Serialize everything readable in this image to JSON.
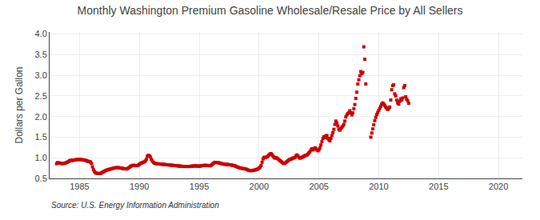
{
  "chart_data": {
    "type": "scatter",
    "title": "Monthly Washington Premium Gasoline Wholesale/Resale Price by All Sellers",
    "y_label": "Dollars per Gallon",
    "annotations": [
      "Source: U.S. Energy Information Administration"
    ],
    "color": "#CC0000",
    "marker": "square",
    "grid": true,
    "xlim": [
      1982.5,
      2022.0
    ],
    "ylim": [
      0.5,
      4.05
    ],
    "xticks": [
      1985,
      1990,
      1995,
      2000,
      2005,
      2010,
      2015,
      2020
    ],
    "yticks": [
      0.5,
      {
        "value": 1.0,
        "label": "1.0"
      },
      1.5,
      {
        "value": 2.0,
        "label": "2.0"
      },
      2.5,
      {
        "value": 3.0,
        "label": "3.0"
      },
      3.5,
      {
        "value": 4.0,
        "label": "4.0"
      }
    ],
    "x": [
      1983.083,
      1983.167,
      1983.25,
      1983.333,
      1983.417,
      1983.5,
      1983.583,
      1983.667,
      1983.75,
      1983.833,
      1983.917,
      1984.0,
      1984.083,
      1984.167,
      1984.25,
      1984.333,
      1984.417,
      1984.5,
      1984.583,
      1984.667,
      1984.75,
      1984.833,
      1984.917,
      1985.0,
      1985.083,
      1985.167,
      1985.25,
      1985.333,
      1985.417,
      1985.5,
      1985.583,
      1985.667,
      1985.75,
      1985.833,
      1985.917,
      1986.0,
      1986.083,
      1986.167,
      1986.25,
      1986.333,
      1986.417,
      1986.5,
      1986.583,
      1986.667,
      1986.75,
      1986.833,
      1986.917,
      1987.0,
      1987.083,
      1987.167,
      1987.25,
      1987.333,
      1987.417,
      1987.5,
      1987.583,
      1987.667,
      1987.75,
      1987.833,
      1987.917,
      1988.0,
      1988.083,
      1988.167,
      1988.25,
      1988.333,
      1988.417,
      1988.5,
      1988.583,
      1988.667,
      1988.75,
      1988.833,
      1988.917,
      1989.0,
      1989.083,
      1989.167,
      1989.25,
      1989.333,
      1989.417,
      1989.5,
      1989.583,
      1989.667,
      1989.75,
      1989.833,
      1989.917,
      1990.0,
      1990.083,
      1990.167,
      1990.25,
      1990.333,
      1990.417,
      1990.5,
      1990.583,
      1990.667,
      1990.75,
      1990.833,
      1990.917,
      1991.0,
      1991.083,
      1991.167,
      1991.25,
      1991.333,
      1991.417,
      1991.5,
      1991.583,
      1991.667,
      1991.75,
      1991.833,
      1991.917,
      1992.0,
      1992.083,
      1992.167,
      1992.25,
      1992.333,
      1992.417,
      1992.5,
      1992.583,
      1992.667,
      1992.75,
      1992.833,
      1992.917,
      1993.0,
      1993.083,
      1993.167,
      1993.25,
      1993.333,
      1993.417,
      1993.5,
      1993.583,
      1993.667,
      1993.75,
      1993.833,
      1993.917,
      1994.0,
      1994.083,
      1994.167,
      1994.25,
      1994.333,
      1994.417,
      1994.5,
      1994.583,
      1994.667,
      1994.75,
      1994.833,
      1994.917,
      1995.0,
      1995.083,
      1995.167,
      1995.25,
      1995.333,
      1995.417,
      1995.5,
      1995.583,
      1995.667,
      1995.75,
      1995.833,
      1995.917,
      1996.0,
      1996.083,
      1996.167,
      1996.25,
      1996.333,
      1996.417,
      1996.5,
      1996.583,
      1996.667,
      1996.75,
      1996.833,
      1996.917,
      1997.0,
      1997.083,
      1997.167,
      1997.25,
      1997.333,
      1997.417,
      1997.5,
      1997.583,
      1997.667,
      1997.75,
      1997.833,
      1997.917,
      1998.0,
      1998.083,
      1998.167,
      1998.25,
      1998.333,
      1998.417,
      1998.5,
      1998.583,
      1998.667,
      1998.75,
      1998.833,
      1998.917,
      1999.0,
      1999.083,
      1999.167,
      1999.25,
      1999.333,
      1999.417,
      1999.5,
      1999.583,
      1999.667,
      1999.75,
      1999.833,
      1999.917,
      2000.0,
      2000.083,
      2000.167,
      2000.25,
      2000.333,
      2000.417,
      2000.5,
      2000.583,
      2000.667,
      2000.75,
      2000.833,
      2000.917,
      2001.0,
      2001.083,
      2001.167,
      2001.25,
      2001.333,
      2001.417,
      2001.5,
      2001.583,
      2001.667,
      2001.75,
      2001.833,
      2001.917,
      2002.0,
      2002.083,
      2002.167,
      2002.25,
      2002.333,
      2002.417,
      2002.5,
      2002.583,
      2002.667,
      2002.75,
      2002.833,
      2002.917,
      2003.0,
      2003.083,
      2003.167,
      2003.25,
      2003.333,
      2003.417,
      2003.5,
      2003.583,
      2003.667,
      2003.75,
      2003.833,
      2003.917,
      2004.0,
      2004.083,
      2004.167,
      2004.25,
      2004.333,
      2004.417,
      2004.5,
      2004.583,
      2004.667,
      2004.75,
      2004.833,
      2004.917,
      2005.0,
      2005.083,
      2005.167,
      2005.25,
      2005.333,
      2005.417,
      2005.5,
      2005.583,
      2005.667,
      2005.75,
      2005.833,
      2005.917,
      2006.0,
      2006.083,
      2006.167,
      2006.25,
      2006.333,
      2006.417,
      2006.5,
      2006.583,
      2006.667,
      2006.75,
      2006.833,
      2006.917,
      2007.0,
      2007.083,
      2007.167,
      2007.25,
      2007.333,
      2007.417,
      2007.5,
      2007.583,
      2007.667,
      2007.75,
      2007.833,
      2007.917,
      2008.0,
      2008.083,
      2008.167,
      2008.25,
      2008.333,
      2008.417,
      2008.5,
      2008.583,
      2008.667,
      2008.75,
      2008.833,
      2008.917,
      2009.333,
      2009.417,
      2009.5,
      2009.583,
      2009.667,
      2009.75,
      2009.833,
      2009.917,
      2010.0,
      2010.083,
      2010.167,
      2010.25,
      2010.333,
      2010.417,
      2010.5,
      2010.583,
      2010.667,
      2010.75,
      2010.833,
      2010.917,
      2011.0,
      2011.083,
      2011.167,
      2011.25,
      2011.333,
      2011.417,
      2011.5,
      2011.583,
      2011.667,
      2011.75,
      2011.833,
      2011.917,
      2012.0,
      2012.083,
      2012.167,
      2012.25,
      2012.333,
      2012.417,
      2012.5
    ],
    "values": [
      0.857,
      0.883,
      0.875,
      0.872,
      0.868,
      0.862,
      0.858,
      0.862,
      0.868,
      0.875,
      0.885,
      0.895,
      0.91,
      0.928,
      0.938,
      0.932,
      0.938,
      0.942,
      0.945,
      0.948,
      0.955,
      0.958,
      0.96,
      0.961,
      0.958,
      0.955,
      0.95,
      0.948,
      0.942,
      0.938,
      0.932,
      0.918,
      0.912,
      0.905,
      0.898,
      0.862,
      0.78,
      0.71,
      0.668,
      0.638,
      0.625,
      0.62,
      0.618,
      0.618,
      0.622,
      0.632,
      0.648,
      0.66,
      0.672,
      0.688,
      0.698,
      0.705,
      0.712,
      0.72,
      0.728,
      0.735,
      0.74,
      0.748,
      0.752,
      0.758,
      0.76,
      0.762,
      0.76,
      0.755,
      0.752,
      0.748,
      0.742,
      0.738,
      0.735,
      0.732,
      0.73,
      0.738,
      0.752,
      0.77,
      0.792,
      0.802,
      0.812,
      0.818,
      0.815,
      0.812,
      0.808,
      0.812,
      0.822,
      0.842,
      0.862,
      0.872,
      0.882,
      0.892,
      0.902,
      0.922,
      0.962,
      1.038,
      1.058,
      1.048,
      1.018,
      0.962,
      0.922,
      0.892,
      0.872,
      0.862,
      0.858,
      0.855,
      0.852,
      0.85,
      0.848,
      0.845,
      0.842,
      0.84,
      0.838,
      0.835,
      0.832,
      0.83,
      0.828,
      0.825,
      0.822,
      0.82,
      0.818,
      0.815,
      0.812,
      0.81,
      0.808,
      0.805,
      0.802,
      0.8,
      0.798,
      0.795,
      0.792,
      0.79,
      0.79,
      0.79,
      0.79,
      0.79,
      0.788,
      0.79,
      0.792,
      0.795,
      0.798,
      0.8,
      0.802,
      0.805,
      0.802,
      0.8,
      0.798,
      0.795,
      0.798,
      0.805,
      0.81,
      0.812,
      0.815,
      0.818,
      0.815,
      0.812,
      0.81,
      0.808,
      0.805,
      0.82,
      0.84,
      0.86,
      0.88,
      0.89,
      0.888,
      0.885,
      0.88,
      0.875,
      0.865,
      0.86,
      0.855,
      0.85,
      0.845,
      0.842,
      0.84,
      0.838,
      0.835,
      0.832,
      0.83,
      0.825,
      0.82,
      0.815,
      0.81,
      0.8,
      0.79,
      0.78,
      0.77,
      0.76,
      0.752,
      0.748,
      0.742,
      0.738,
      0.735,
      0.73,
      0.725,
      0.712,
      0.702,
      0.695,
      0.69,
      0.688,
      0.69,
      0.695,
      0.7,
      0.705,
      0.71,
      0.72,
      0.732,
      0.752,
      0.772,
      0.812,
      0.892,
      0.972,
      1.012,
      1.002,
      1.012,
      1.022,
      1.042,
      1.072,
      1.092,
      1.102,
      1.072,
      1.042,
      1.012,
      0.992,
      1.002,
      0.992,
      0.972,
      0.952,
      0.932,
      0.912,
      0.892,
      0.87,
      0.86,
      0.87,
      0.89,
      0.91,
      0.93,
      0.95,
      0.96,
      0.97,
      0.98,
      0.99,
      1.0,
      1.01,
      1.04,
      1.07,
      1.04,
      1.01,
      0.99,
      1.0,
      1.01,
      1.02,
      1.04,
      1.05,
      1.06,
      1.07,
      1.09,
      1.12,
      1.15,
      1.19,
      1.22,
      1.19,
      1.21,
      1.24,
      1.22,
      1.19,
      1.17,
      1.19,
      1.24,
      1.31,
      1.39,
      1.47,
      1.51,
      1.49,
      1.53,
      1.54,
      1.47,
      1.44,
      1.41,
      1.47,
      1.54,
      1.61,
      1.69,
      1.81,
      1.89,
      1.84,
      1.77,
      1.69,
      1.67,
      1.71,
      1.74,
      1.77,
      1.81,
      1.89,
      1.99,
      2.04,
      2.07,
      2.09,
      2.14,
      2.09,
      2.04,
      2.09,
      2.19,
      2.29,
      2.44,
      2.59,
      2.79,
      2.89,
      2.99,
      3.09,
      3.04,
      3.07,
      3.69,
      3.39,
      2.79,
      1.5,
      1.6,
      1.7,
      1.8,
      1.9,
      1.98,
      2.05,
      2.1,
      2.15,
      2.2,
      2.25,
      2.3,
      2.33,
      2.3,
      2.27,
      2.23,
      2.2,
      2.17,
      2.2,
      2.23,
      2.4,
      2.65,
      2.75,
      2.77,
      2.55,
      2.5,
      2.4,
      2.33,
      2.3,
      2.37,
      2.43,
      2.4,
      2.45,
      2.7,
      2.75,
      2.48,
      2.42,
      2.38,
      2.32
    ]
  }
}
